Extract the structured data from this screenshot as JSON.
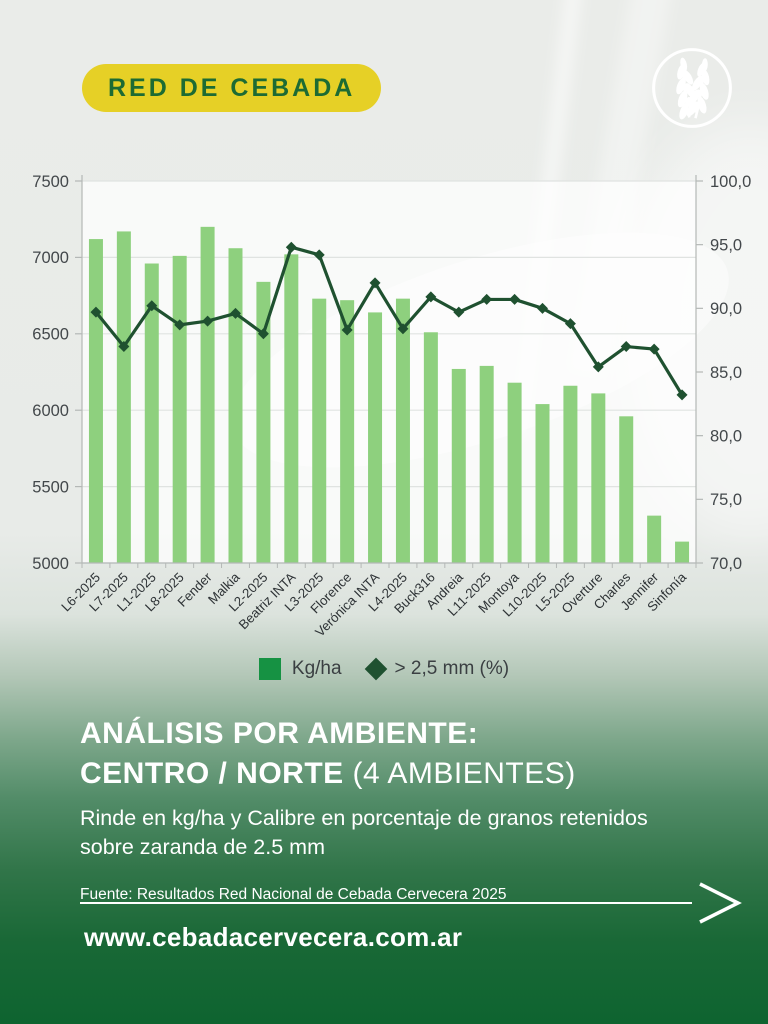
{
  "badge": {
    "label": "RED DE CEBADA",
    "bg_color": "#e6d026",
    "text_color": "#1d6b33"
  },
  "logo": {
    "icon": "barley-ears-icon"
  },
  "chart_data": {
    "type": "bar+line",
    "categories": [
      "L6-2025",
      "L7-2025",
      "L1-2025",
      "L8-2025",
      "Fender",
      "Malkia",
      "L2-2025",
      "Beatriz INTA",
      "L3-2025",
      "Florence",
      "Verónica INTA",
      "L4-2025",
      "Buck316",
      "Andreia",
      "L11-2025",
      "Montoya",
      "L10-2025",
      "L5-2025",
      "Overture",
      "Charles",
      "Jennifer",
      "Sinfonía"
    ],
    "series": [
      {
        "name": "Kg/ha",
        "type": "bar",
        "axis": "left",
        "color": "#8ed07e",
        "values": [
          7120,
          7170,
          6960,
          7010,
          7200,
          7060,
          6840,
          7020,
          6730,
          6720,
          6640,
          6730,
          6510,
          6270,
          6290,
          6180,
          6040,
          6160,
          6110,
          5960,
          5310,
          5140
        ]
      },
      {
        "name": "> 2,5 mm (%)",
        "type": "line",
        "axis": "right",
        "color": "#1f5130",
        "values": [
          89.7,
          87.0,
          90.2,
          88.7,
          89.0,
          89.6,
          88.0,
          94.8,
          94.2,
          88.3,
          92.0,
          88.4,
          90.9,
          89.7,
          90.7,
          90.7,
          90.0,
          88.8,
          85.4,
          87.0,
          86.8,
          83.2
        ]
      }
    ],
    "left_axis": {
      "min": 5000,
      "max": 7500,
      "step": 500,
      "ticks": [
        "7500",
        "7000",
        "6500",
        "6000",
        "5500",
        "5000"
      ]
    },
    "right_axis": {
      "min": 70,
      "max": 100,
      "step": 5,
      "ticks": [
        "100,0",
        "95,0",
        "90,0",
        "85,0",
        "80,0",
        "75,0",
        "70,0"
      ]
    },
    "legend": [
      {
        "label": "Kg/ha",
        "swatch": "square",
        "color": "#169243"
      },
      {
        "label": "> 2,5 mm (%)",
        "swatch": "diamond",
        "color": "#1f5130"
      }
    ],
    "grid": true,
    "legend_position": "bottom-center"
  },
  "info": {
    "title_line1": "ANÁLISIS POR AMBIENTE:",
    "title_line2_strong": "CENTRO / NORTE",
    "title_line2_light": " (4 AMBIENTES)",
    "subtitle": "Rinde en kg/ha y Calibre en porcentaje de granos retenidos sobre zaranda de 2.5 mm",
    "source": "Fuente: Resultados Red Nacional de Cebada Cervecera 2025",
    "website": "www.cebadacervecera.com.ar"
  },
  "colors": {
    "bar": "#8ed07e",
    "line": "#1f5130",
    "grid": "#e0e3e1",
    "axis": "#b4b8b6",
    "tick_text": "#43484b",
    "category_text": "#2e3336",
    "bg_top": "#e9ebe9",
    "bg_bottom": "#0e6430"
  }
}
